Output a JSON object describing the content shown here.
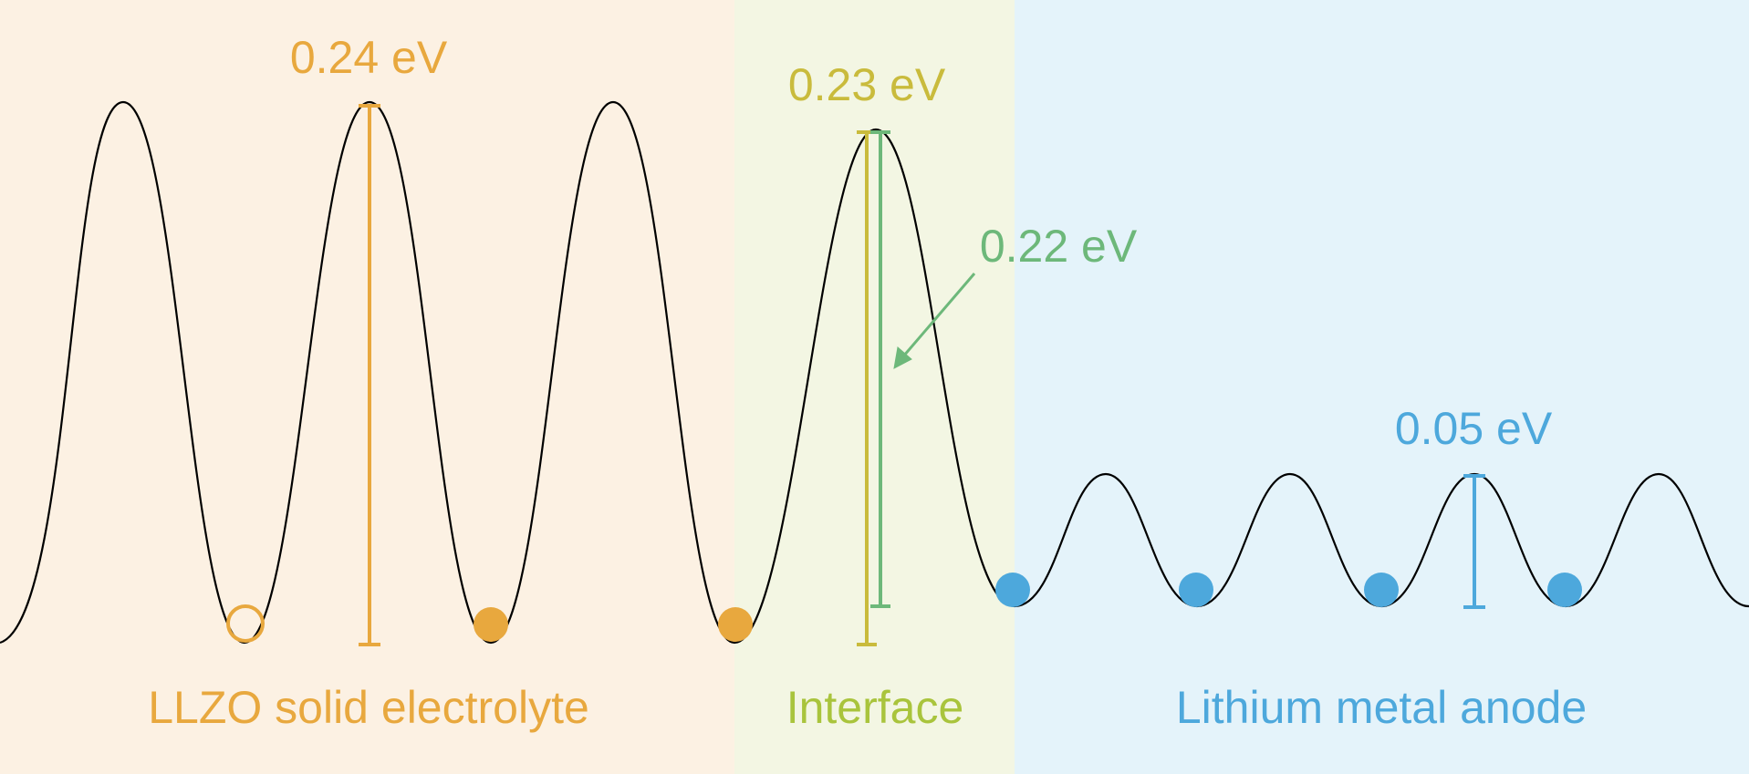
{
  "regions": [
    {
      "id": "llzo",
      "label": "LLZO solid electrolyte",
      "color": "#e8a83e",
      "bg": "#fcf1e3"
    },
    {
      "id": "interface",
      "label": "Interface",
      "color": "#a9c43c",
      "bg": "#f3f6e3"
    },
    {
      "id": "lithium",
      "label": "Lithium metal anode",
      "color": "#4da8dc",
      "bg": "#e4f3fa"
    }
  ],
  "barriers": [
    {
      "id": "llzo-barrier",
      "value": "0.24 eV",
      "color": "#e8a83e"
    },
    {
      "id": "interface-barrier",
      "value": "0.23 eV",
      "color": "#c9bb3c"
    },
    {
      "id": "interface-barrier-alt",
      "value": "0.22 eV",
      "color": "#6db87a"
    },
    {
      "id": "lithium-barrier",
      "value": "0.05 eV",
      "color": "#4da8dc"
    }
  ],
  "ions": {
    "vacancy_color": "#e8a83e",
    "llzo_ion_color": "#e8a83e",
    "lithium_ion_color": "#4da8dc"
  },
  "curve_color": "#000000"
}
